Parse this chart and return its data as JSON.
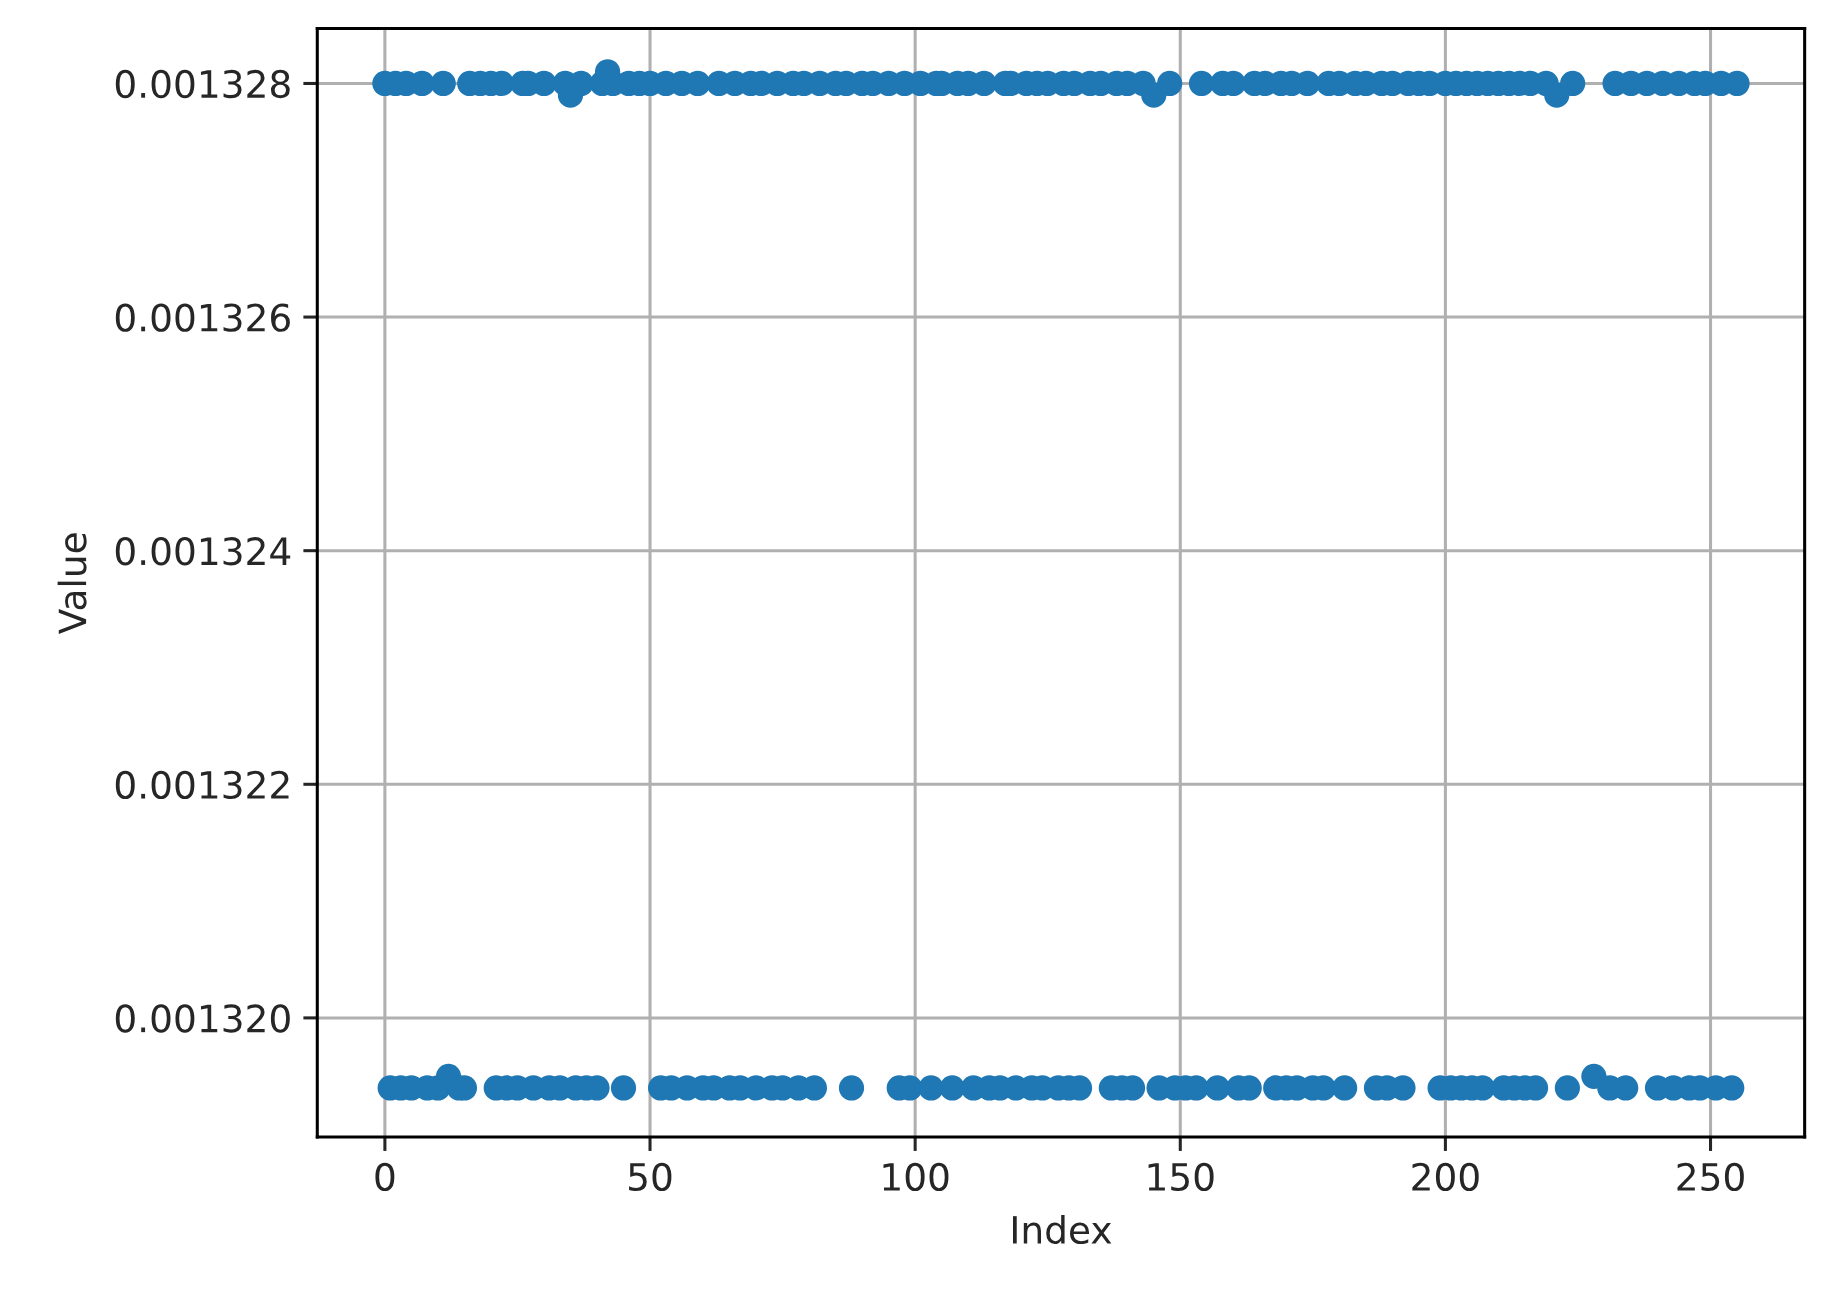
{
  "chart_data": {
    "type": "scatter",
    "xlabel": "Index",
    "ylabel": "Value",
    "xlim": [
      -12.75,
      267.75
    ],
    "xticks": [
      0,
      50,
      100,
      150,
      200,
      250
    ],
    "ylim": [
      0.00131898,
      0.00132847
    ],
    "yticks": [
      {
        "value": 0.00132,
        "label": "0.001320"
      },
      {
        "value": 0.001322,
        "label": "0.001322"
      },
      {
        "value": 0.001324,
        "label": "0.001324"
      },
      {
        "value": 0.001326,
        "label": "0.001326"
      },
      {
        "value": 0.001328,
        "label": "0.001328"
      }
    ],
    "grid": true,
    "marker": "circle",
    "series": [
      {
        "color": "#1f77b4",
        "x": [
          0,
          2,
          4,
          7,
          11,
          16,
          18,
          20,
          22,
          26,
          27,
          30,
          34,
          35,
          37,
          41,
          42,
          43,
          46,
          48,
          50,
          53,
          56,
          59,
          63,
          66,
          69,
          71,
          74,
          77,
          79,
          82,
          85,
          87,
          90,
          92,
          95,
          98,
          101,
          104,
          105,
          108,
          110,
          113,
          117,
          118,
          121,
          123,
          125,
          128,
          130,
          133,
          135,
          138,
          140,
          143,
          145,
          148,
          154,
          158,
          160,
          164,
          166,
          169,
          171,
          174,
          178,
          180,
          183,
          185,
          188,
          190,
          193,
          195,
          197,
          200,
          202,
          204,
          206,
          208,
          210,
          212,
          214,
          216,
          219,
          221,
          224,
          232,
          235,
          238,
          241,
          244,
          247,
          249,
          252,
          255
        ],
        "values": [
          0.001328,
          0.001328,
          0.001328,
          0.001328,
          0.001328,
          0.001328,
          0.001328,
          0.001328,
          0.001328,
          0.001328,
          0.001328,
          0.001328,
          0.001328,
          0.0013279,
          0.001328,
          0.001328,
          0.0013281,
          0.001328,
          0.001328,
          0.001328,
          0.001328,
          0.001328,
          0.001328,
          0.001328,
          0.001328,
          0.001328,
          0.001328,
          0.001328,
          0.001328,
          0.001328,
          0.001328,
          0.001328,
          0.001328,
          0.001328,
          0.001328,
          0.001328,
          0.001328,
          0.001328,
          0.001328,
          0.001328,
          0.001328,
          0.001328,
          0.001328,
          0.001328,
          0.001328,
          0.001328,
          0.001328,
          0.001328,
          0.001328,
          0.001328,
          0.001328,
          0.001328,
          0.001328,
          0.001328,
          0.001328,
          0.001328,
          0.0013279,
          0.001328,
          0.001328,
          0.001328,
          0.001328,
          0.001328,
          0.001328,
          0.001328,
          0.001328,
          0.001328,
          0.001328,
          0.001328,
          0.001328,
          0.001328,
          0.001328,
          0.001328,
          0.001328,
          0.001328,
          0.001328,
          0.001328,
          0.001328,
          0.001328,
          0.001328,
          0.001328,
          0.001328,
          0.001328,
          0.001328,
          0.001328,
          0.001328,
          0.0013279,
          0.001328,
          0.001328,
          0.001328,
          0.001328,
          0.001328,
          0.001328,
          0.001328,
          0.001328,
          0.001328,
          0.001328
        ]
      },
      {
        "color": "#1f77b4",
        "x": [
          1,
          3,
          5,
          8,
          10,
          12,
          14,
          15,
          21,
          23,
          25,
          28,
          31,
          33,
          36,
          38,
          40,
          45,
          52,
          54,
          57,
          60,
          62,
          65,
          67,
          70,
          73,
          75,
          78,
          81,
          88,
          97,
          99,
          103,
          107,
          111,
          114,
          116,
          119,
          122,
          124,
          127,
          129,
          131,
          137,
          139,
          141,
          146,
          149,
          151,
          153,
          157,
          161,
          163,
          168,
          170,
          172,
          175,
          177,
          181,
          187,
          189,
          192,
          199,
          201,
          203,
          205,
          207,
          211,
          213,
          215,
          217,
          223,
          228,
          231,
          234,
          240,
          243,
          246,
          248,
          251,
          254
        ],
        "values": [
          0.0013194,
          0.0013194,
          0.0013194,
          0.0013194,
          0.0013194,
          0.0013195,
          0.0013194,
          0.0013194,
          0.0013194,
          0.0013194,
          0.0013194,
          0.0013194,
          0.0013194,
          0.0013194,
          0.0013194,
          0.0013194,
          0.0013194,
          0.0013194,
          0.0013194,
          0.0013194,
          0.0013194,
          0.0013194,
          0.0013194,
          0.0013194,
          0.0013194,
          0.0013194,
          0.0013194,
          0.0013194,
          0.0013194,
          0.0013194,
          0.0013194,
          0.0013194,
          0.0013194,
          0.0013194,
          0.0013194,
          0.0013194,
          0.0013194,
          0.0013194,
          0.0013194,
          0.0013194,
          0.0013194,
          0.0013194,
          0.0013194,
          0.0013194,
          0.0013194,
          0.0013194,
          0.0013194,
          0.0013194,
          0.0013194,
          0.0013194,
          0.0013194,
          0.0013194,
          0.0013194,
          0.0013194,
          0.0013194,
          0.0013194,
          0.0013194,
          0.0013194,
          0.0013194,
          0.0013194,
          0.0013194,
          0.0013194,
          0.0013194,
          0.0013194,
          0.0013194,
          0.0013194,
          0.0013194,
          0.0013194,
          0.0013194,
          0.0013194,
          0.0013194,
          0.0013194,
          0.0013194,
          0.0013195,
          0.0013194,
          0.0013194,
          0.0013194,
          0.0013194,
          0.0013194,
          0.0013194,
          0.0013194,
          0.0013194
        ]
      }
    ]
  }
}
